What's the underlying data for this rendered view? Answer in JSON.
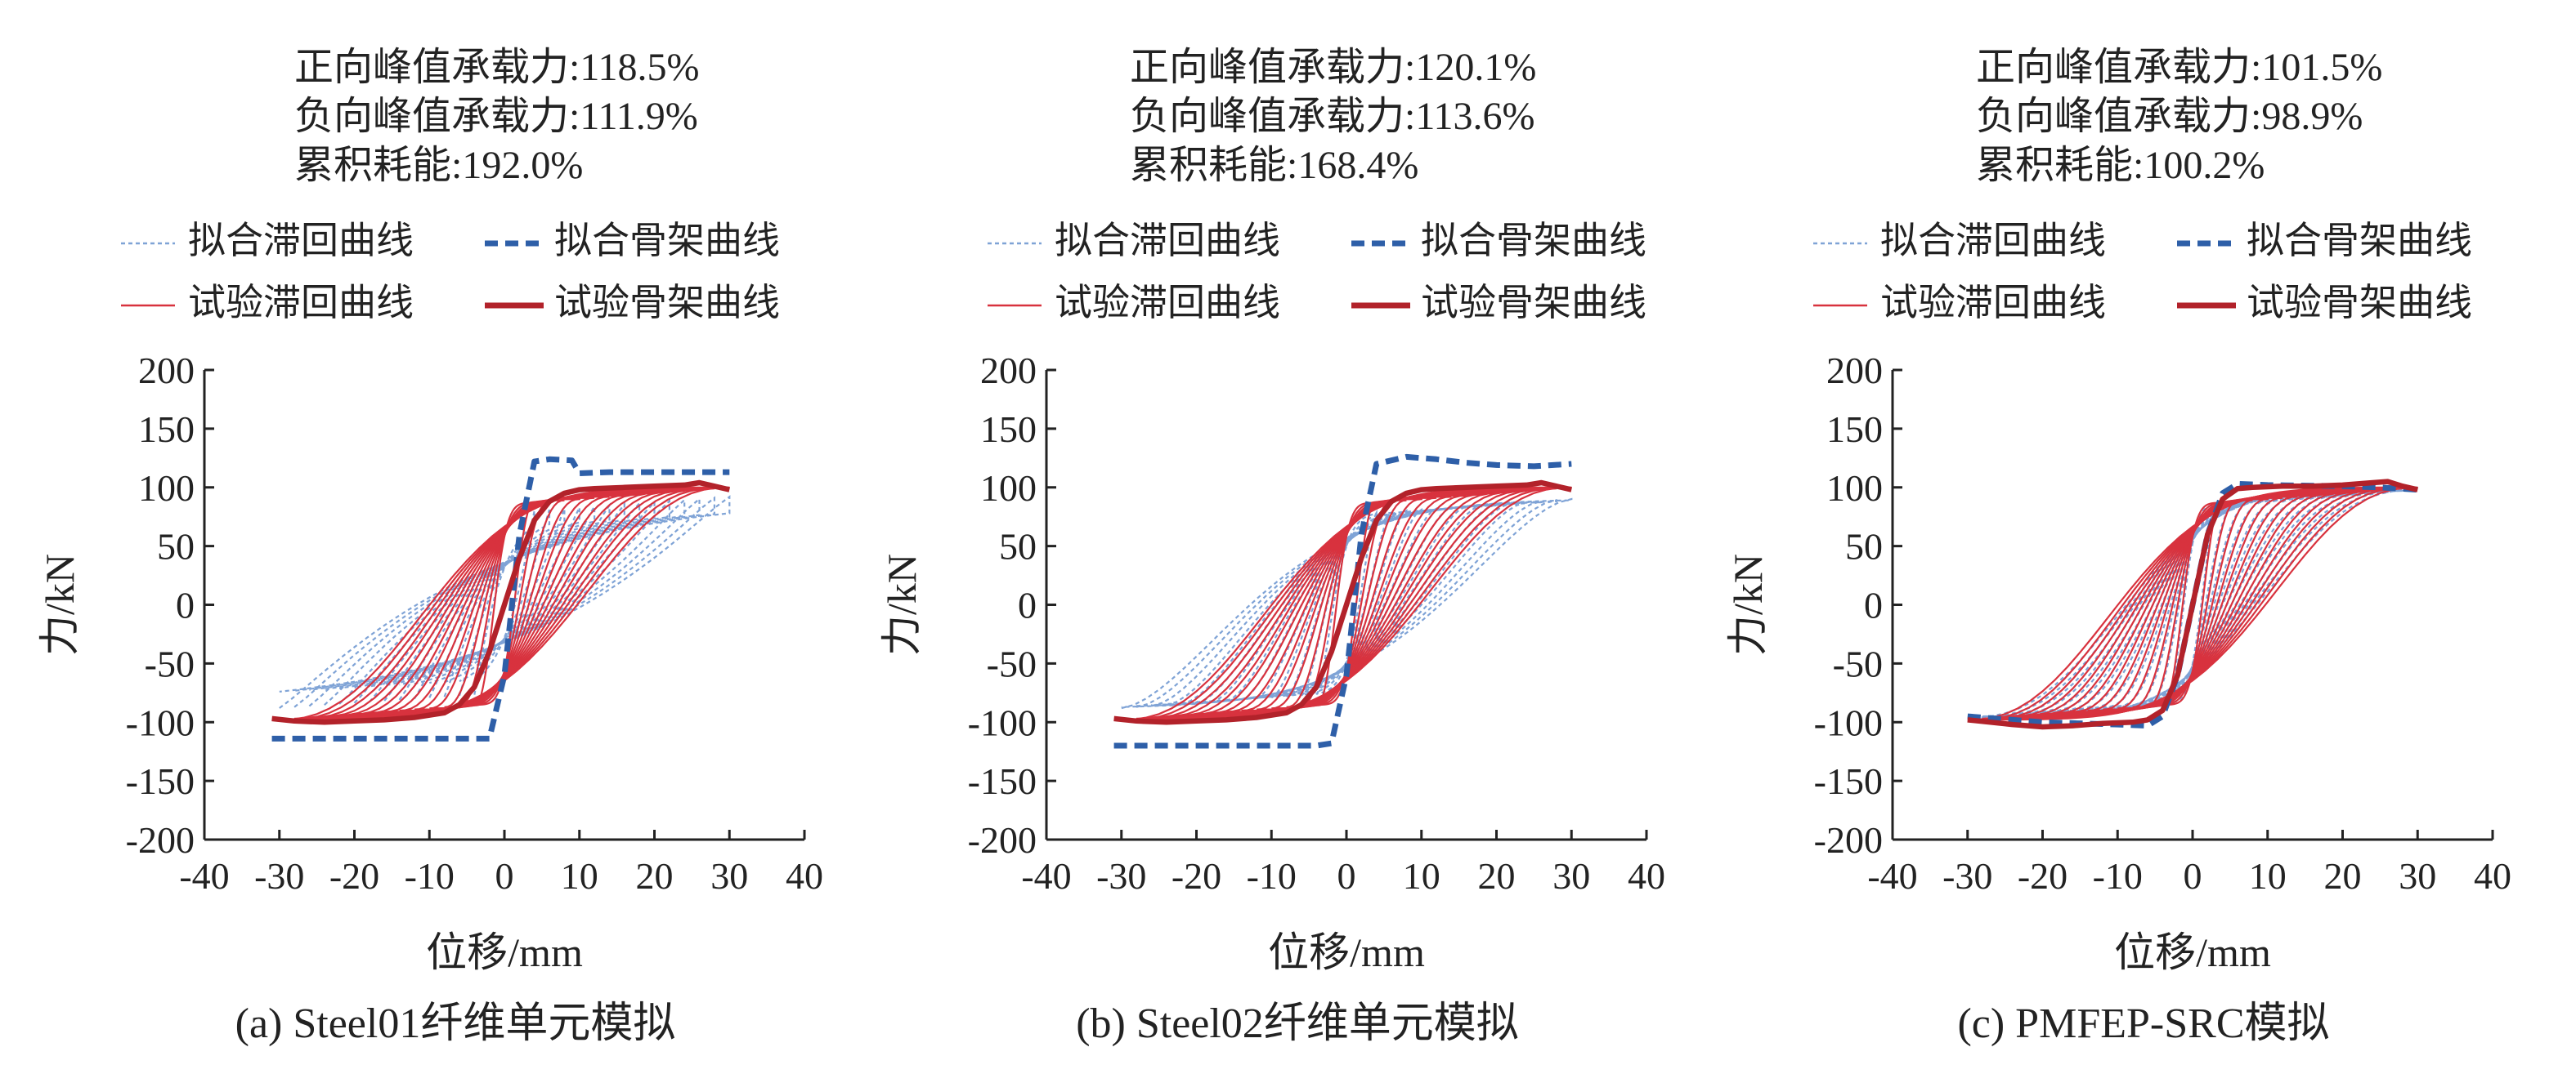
{
  "figure": {
    "colors": {
      "fit": "#2E5FA8",
      "fit_light": "#7FA3D6",
      "test": "#D8323E",
      "test_skeleton": "#B2222A",
      "axis": "#222222"
    },
    "legend": {
      "fit_hysteresis": "拟合滞回曲线",
      "fit_skeleton": "拟合骨架曲线",
      "test_hysteresis": "试验滞回曲线",
      "test_skeleton": "试验骨架曲线"
    }
  },
  "chart_data": [
    {
      "type": "line",
      "id": "a",
      "caption": "(a) Steel01纤维单元模拟",
      "annotations": [
        "正向峰值承载力:118.5%",
        "负向峰值承载力:111.9%",
        "累积耗能:192.0%"
      ],
      "xlabel": "位移/mm",
      "ylabel": "力/kN",
      "xlim": [
        -40,
        40
      ],
      "ylim": [
        -200,
        200
      ],
      "xticks": [
        -40,
        -30,
        -20,
        -10,
        0,
        10,
        20,
        30,
        40
      ],
      "yticks": [
        -200,
        -150,
        -100,
        -50,
        0,
        50,
        100,
        150,
        200
      ],
      "grid": false,
      "legend_position": "top",
      "series": [
        {
          "name": "拟合骨架曲线",
          "style": "dashed-thick",
          "x": [
            -31,
            -4,
            -2,
            0,
            2,
            4,
            6,
            9,
            10,
            14,
            20,
            25,
            30
          ],
          "y": [
            -114,
            -114,
            -114,
            -60,
            60,
            122,
            124,
            123,
            112,
            113,
            113,
            113,
            113
          ]
        },
        {
          "name": "试验骨架曲线",
          "style": "solid-thick",
          "x": [
            -31,
            -28,
            -24,
            -20,
            -16,
            -12,
            -8,
            -6,
            -4,
            -2,
            0,
            2,
            4,
            6,
            8,
            10,
            12,
            16,
            20,
            24,
            26,
            28,
            30
          ],
          "y": [
            -97,
            -99,
            -100,
            -99,
            -98,
            -96,
            -92,
            -85,
            -70,
            -40,
            0,
            40,
            72,
            88,
            95,
            98,
            99,
            100,
            101,
            102,
            104,
            101,
            98
          ]
        },
        {
          "name": "拟合滞回曲线",
          "style": "dashed-thin",
          "amplitudes": [
            4,
            6,
            8,
            10,
            12,
            14,
            16,
            18,
            20,
            22,
            24,
            26,
            28,
            30
          ],
          "loop_shape": {
            "f_pos": 92,
            "f_neg": -88,
            "k": 2.2,
            "pinch": 0.05
          }
        },
        {
          "name": "试验滞回曲线",
          "style": "solid-thin",
          "amplitudes": [
            4,
            6,
            8,
            10,
            12,
            14,
            16,
            18,
            20,
            22,
            24,
            26,
            28,
            30
          ],
          "loop_shape": {
            "f_pos": 100,
            "f_neg": -98,
            "k": 0.5,
            "pinch": 0.55
          }
        }
      ]
    },
    {
      "type": "line",
      "id": "b",
      "caption": "(b) Steel02纤维单元模拟",
      "annotations": [
        "正向峰值承载力:120.1%",
        "负向峰值承载力:113.6%",
        "累积耗能:168.4%"
      ],
      "xlabel": "位移/mm",
      "ylabel": "力/kN",
      "xlim": [
        -40,
        40
      ],
      "ylim": [
        -200,
        200
      ],
      "xticks": [
        -40,
        -30,
        -20,
        -10,
        0,
        10,
        20,
        30,
        40
      ],
      "yticks": [
        -200,
        -150,
        -100,
        -50,
        0,
        50,
        100,
        150,
        200
      ],
      "grid": false,
      "legend_position": "top",
      "series": [
        {
          "name": "拟合骨架曲线",
          "style": "dashed-thick",
          "x": [
            -31,
            -28,
            -20,
            -10,
            -4,
            -2,
            0,
            2,
            4,
            8,
            12,
            16,
            20,
            25,
            30
          ],
          "y": [
            -120,
            -120,
            -120,
            -120,
            -120,
            -118,
            -60,
            60,
            120,
            126,
            124,
            121,
            119,
            118,
            120
          ]
        },
        {
          "name": "试验骨架曲线",
          "style": "solid-thick",
          "x": [
            -31,
            -28,
            -24,
            -20,
            -16,
            -12,
            -8,
            -6,
            -4,
            -2,
            0,
            2,
            4,
            6,
            8,
            10,
            12,
            16,
            20,
            24,
            26,
            28,
            30
          ],
          "y": [
            -97,
            -99,
            -100,
            -99,
            -98,
            -96,
            -92,
            -85,
            -70,
            -40,
            0,
            40,
            72,
            88,
            95,
            98,
            99,
            100,
            101,
            102,
            104,
            101,
            98
          ]
        },
        {
          "name": "拟合滞回曲线",
          "style": "dashed-thin",
          "amplitudes": [
            4,
            6,
            8,
            10,
            12,
            14,
            16,
            18,
            20,
            22,
            24,
            26,
            28,
            30
          ],
          "loop_shape": {
            "f_pos": 90,
            "f_neg": -88,
            "k": 1.0,
            "pinch": 0.25
          }
        },
        {
          "name": "试验滞回曲线",
          "style": "solid-thin",
          "amplitudes": [
            4,
            6,
            8,
            10,
            12,
            14,
            16,
            18,
            20,
            22,
            24,
            26,
            28,
            30
          ],
          "loop_shape": {
            "f_pos": 100,
            "f_neg": -98,
            "k": 0.5,
            "pinch": 0.55
          }
        }
      ]
    },
    {
      "type": "line",
      "id": "c",
      "caption": "(c) PMFEP-SRC模拟",
      "annotations": [
        "正向峰值承载力:101.5%",
        "负向峰值承载力:98.9%",
        "累积耗能:100.2%"
      ],
      "xlabel": "位移/mm",
      "ylabel": "力/kN",
      "xlim": [
        -40,
        40
      ],
      "ylim": [
        -200,
        200
      ],
      "xticks": [
        -40,
        -30,
        -20,
        -10,
        0,
        10,
        20,
        30,
        40
      ],
      "yticks": [
        -200,
        -150,
        -100,
        -50,
        0,
        50,
        100,
        150,
        200
      ],
      "grid": false,
      "legend_position": "top",
      "series": [
        {
          "name": "拟合骨架曲线",
          "style": "dashed-thick",
          "x": [
            -30,
            -20,
            -10,
            -6,
            -4,
            -2,
            0,
            2,
            4,
            6,
            10,
            20,
            25,
            30
          ],
          "y": [
            -95,
            -100,
            -102,
            -103,
            -95,
            -60,
            0,
            60,
            95,
            103,
            102,
            101,
            100,
            98
          ]
        },
        {
          "name": "试验骨架曲线",
          "style": "solid-thick",
          "x": [
            -30,
            -24,
            -20,
            -16,
            -12,
            -8,
            -6,
            -4,
            -2,
            0,
            2,
            4,
            6,
            8,
            12,
            16,
            20,
            24,
            26,
            28,
            30
          ],
          "y": [
            -98,
            -102,
            -104,
            -103,
            -101,
            -100,
            -98,
            -90,
            -60,
            0,
            60,
            90,
            99,
            100,
            101,
            101,
            102,
            104,
            105,
            101,
            98
          ]
        },
        {
          "name": "拟合滞回曲线",
          "style": "dashed-thin",
          "amplitudes": [
            4,
            6,
            8,
            10,
            12,
            14,
            16,
            18,
            20,
            22,
            24,
            26,
            28,
            30
          ],
          "loop_shape": {
            "f_pos": 98,
            "f_neg": -96,
            "k": 0.5,
            "pinch": 0.6
          }
        },
        {
          "name": "试验滞回曲线",
          "style": "solid-thin",
          "amplitudes": [
            4,
            6,
            8,
            10,
            12,
            14,
            16,
            18,
            20,
            22,
            24,
            26,
            28,
            30
          ],
          "loop_shape": {
            "f_pos": 100,
            "f_neg": -98,
            "k": 0.5,
            "pinch": 0.55
          }
        }
      ]
    }
  ]
}
